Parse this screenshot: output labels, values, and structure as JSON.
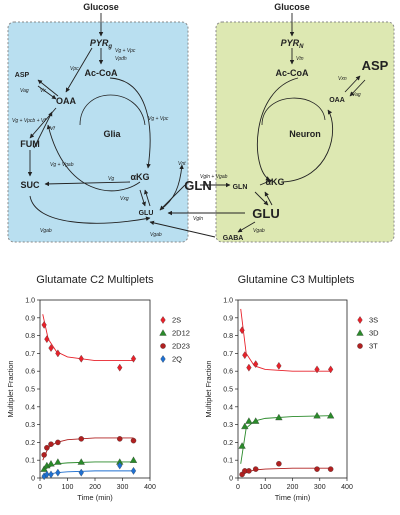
{
  "diagram": {
    "glucose_left": "Glucose",
    "glucose_right": "Glucose",
    "glia_label": "Glia",
    "neuron_label": "Neuron",
    "glia_nodes": {
      "pyr": "PYR",
      "pyr_sub": "g",
      "accoa": "Ac-CoA",
      "asp": "ASP",
      "oaa": "OAA",
      "fum": "FUM",
      "suc": "SUC",
      "akg": "αKG",
      "glu": "GLU"
    },
    "neuron_nodes": {
      "pyr": "PYR",
      "pyr_sub": "N",
      "accoa": "Ac-CoA",
      "asp": "ASP",
      "oaa": "OAA",
      "akg": "αKG",
      "glu": "GLU",
      "gln": "GLN",
      "gaba": "GABA"
    },
    "shared_gln": "GLN",
    "fluxes": {
      "f_pyr_g": "Vg + Vpc",
      "f_pyr_g2": "Vpdh",
      "f_pcg": "Vpc",
      "f_oaa_asp": "Vx",
      "f_oaa_asp2": "Vag",
      "f_fum": "Vg + Vpcb + Vf",
      "f_fum2": "Vf",
      "f_suc": "Vg + Vgab",
      "f_akg_suc": "Vg",
      "f_akg": "Vg + Vpc",
      "f_akg_glu": "Vxg",
      "f_gab_g": "Vgab",
      "f_pdh_n": "Vtn",
      "f_asp_n": "Vxn",
      "f_asp_n2": "Vag",
      "f_gln_exit": "Vnt",
      "f_gln_cycle": "Vgln + Vgab",
      "f_gln_n": "Vgln",
      "f_gab_n": "Vgab",
      "f_gab_glia": "Vgab"
    }
  },
  "chart_data": [
    {
      "type": "scatter",
      "title": "Glutamate C2 Multiplets",
      "xlabel": "Time (min)",
      "ylabel": "Multiplet Fraction",
      "xlim": [
        0,
        400
      ],
      "ylim": [
        0,
        1.0
      ],
      "xticks": [
        "0",
        "100",
        "200",
        "300",
        "400"
      ],
      "yticks": [
        "0",
        "0.1",
        "0.2",
        "0.3",
        "0.4",
        "0.5",
        "0.6",
        "0.7",
        "0.8",
        "0.9",
        "1.0"
      ],
      "legend_position": "right",
      "series": [
        {
          "name": "2S",
          "color": "#e8212a",
          "marker": "diamond",
          "x": [
            15,
            25,
            40,
            65,
            150,
            290,
            340
          ],
          "y": [
            0.86,
            0.78,
            0.73,
            0.7,
            0.67,
            0.62,
            0.67
          ],
          "fit": [
            [
              10,
              0.92
            ],
            [
              30,
              0.78
            ],
            [
              60,
              0.71
            ],
            [
              100,
              0.68
            ],
            [
              200,
              0.66
            ],
            [
              340,
              0.66
            ]
          ]
        },
        {
          "name": "2D12",
          "color": "#2a8a2a",
          "marker": "triangle",
          "x": [
            15,
            25,
            40,
            65,
            150,
            290,
            340
          ],
          "y": [
            0.05,
            0.07,
            0.08,
            0.09,
            0.09,
            0.09,
            0.1
          ],
          "fit": [
            [
              10,
              0.04
            ],
            [
              30,
              0.06
            ],
            [
              60,
              0.08
            ],
            [
              100,
              0.085
            ],
            [
              200,
              0.09
            ],
            [
              340,
              0.09
            ]
          ]
        },
        {
          "name": "2D23",
          "color": "#b02020",
          "marker": "circle",
          "x": [
            15,
            25,
            40,
            65,
            150,
            290,
            340
          ],
          "y": [
            0.13,
            0.17,
            0.19,
            0.2,
            0.22,
            0.22,
            0.21
          ],
          "fit": [
            [
              10,
              0.1
            ],
            [
              30,
              0.17
            ],
            [
              60,
              0.2
            ],
            [
              100,
              0.215
            ],
            [
              200,
              0.225
            ],
            [
              340,
              0.225
            ]
          ]
        },
        {
          "name": "2Q",
          "color": "#1e6fd0",
          "marker": "diamond",
          "x": [
            15,
            25,
            40,
            65,
            150,
            290,
            340
          ],
          "y": [
            0.01,
            0.02,
            0.02,
            0.03,
            0.03,
            0.07,
            0.04
          ],
          "fit": [
            [
              10,
              0.01
            ],
            [
              30,
              0.02
            ],
            [
              60,
              0.03
            ],
            [
              100,
              0.035
            ],
            [
              200,
              0.04
            ],
            [
              340,
              0.04
            ]
          ]
        }
      ]
    },
    {
      "type": "scatter",
      "title": "Glutamine C3 Multiplets",
      "xlabel": "Time (min)",
      "ylabel": "Multiplet Fraction",
      "xlim": [
        0,
        400
      ],
      "ylim": [
        0,
        1.0
      ],
      "xticks": [
        "0",
        "100",
        "200",
        "300",
        "400"
      ],
      "yticks": [
        "0",
        "0.1",
        "0.2",
        "0.3",
        "0.4",
        "0.5",
        "0.6",
        "0.7",
        "0.8",
        "0.9",
        "1.0"
      ],
      "legend_position": "right",
      "series": [
        {
          "name": "3S",
          "color": "#e8212a",
          "marker": "diamond",
          "x": [
            15,
            25,
            40,
            65,
            150,
            290,
            340
          ],
          "y": [
            0.83,
            0.69,
            0.62,
            0.64,
            0.63,
            0.61,
            0.61
          ],
          "fit": [
            [
              10,
              0.95
            ],
            [
              30,
              0.7
            ],
            [
              60,
              0.63
            ],
            [
              100,
              0.61
            ],
            [
              200,
              0.6
            ],
            [
              340,
              0.6
            ]
          ]
        },
        {
          "name": "3D",
          "color": "#2a8a2a",
          "marker": "triangle",
          "x": [
            15,
            25,
            40,
            65,
            150,
            290,
            340
          ],
          "y": [
            0.18,
            0.29,
            0.32,
            0.32,
            0.34,
            0.35,
            0.35
          ],
          "fit": [
            [
              10,
              0.08
            ],
            [
              30,
              0.28
            ],
            [
              60,
              0.32
            ],
            [
              100,
              0.335
            ],
            [
              200,
              0.345
            ],
            [
              340,
              0.35
            ]
          ]
        },
        {
          "name": "3T",
          "color": "#b02020",
          "marker": "circle",
          "x": [
            15,
            25,
            40,
            65,
            150,
            290,
            340
          ],
          "y": [
            0.02,
            0.04,
            0.04,
            0.05,
            0.08,
            0.05,
            0.05
          ],
          "fit": [
            [
              10,
              0.01
            ],
            [
              30,
              0.03
            ],
            [
              60,
              0.045
            ],
            [
              100,
              0.05
            ],
            [
              200,
              0.055
            ],
            [
              340,
              0.055
            ]
          ]
        }
      ]
    }
  ]
}
